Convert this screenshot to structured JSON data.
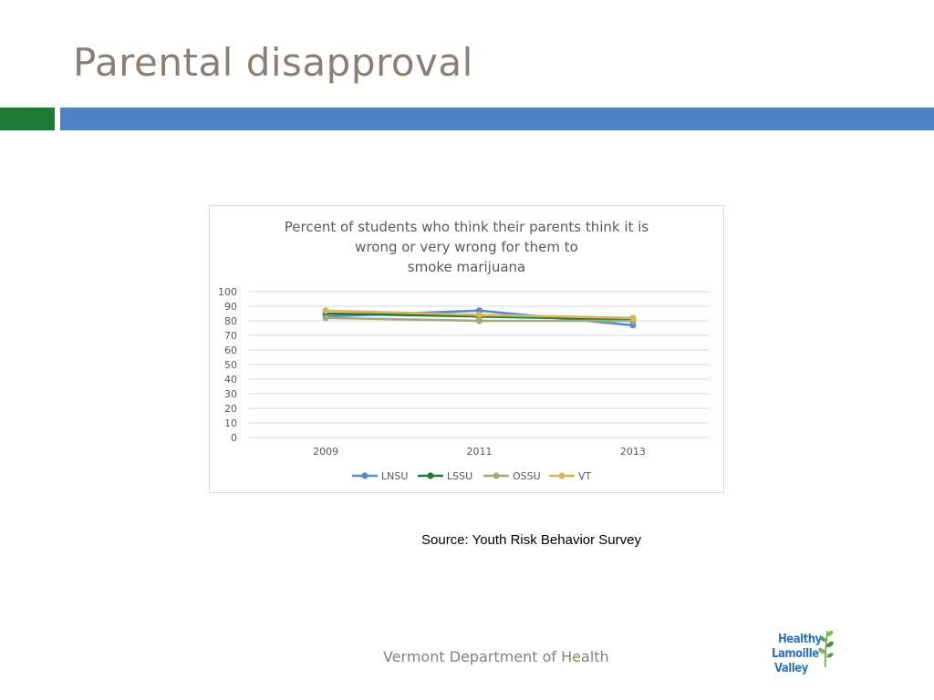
{
  "slide": {
    "title": "Parental disapproval",
    "source": "Source: Youth Risk Behavior Survey",
    "footer": "Vermont Department of Health",
    "logo": {
      "line1": "Healthy",
      "line2": "Lamoille",
      "line3": "Valley",
      "icon": "leaf-sprig-icon"
    },
    "colors": {
      "title": "#8a7f76",
      "accent_green": "#1e7a37",
      "accent_blue": "#4f82c3"
    }
  },
  "chart_data": {
    "type": "line",
    "title_lines": [
      "Percent of students who think their parents think it is",
      "wrong or very wrong for them to",
      "smoke marijuana"
    ],
    "categories": [
      "2009",
      "2011",
      "2013"
    ],
    "ylim": [
      0,
      100
    ],
    "yticks": [
      "0",
      "10",
      "20",
      "30",
      "40",
      "50",
      "60",
      "70",
      "80",
      "90",
      "100"
    ],
    "grid": true,
    "legend_position": "bottom",
    "series": [
      {
        "name": "LNSU",
        "color": "#5b8ac6",
        "values": [
          83,
          87,
          77
        ]
      },
      {
        "name": "LSSU",
        "color": "#1e7a37",
        "values": [
          85,
          83,
          81
        ]
      },
      {
        "name": "OSSU",
        "color": "#a0ac7f",
        "values": [
          82,
          80,
          80
        ]
      },
      {
        "name": "VT",
        "color": "#d9b45a",
        "values": [
          87,
          84,
          82
        ]
      }
    ]
  }
}
